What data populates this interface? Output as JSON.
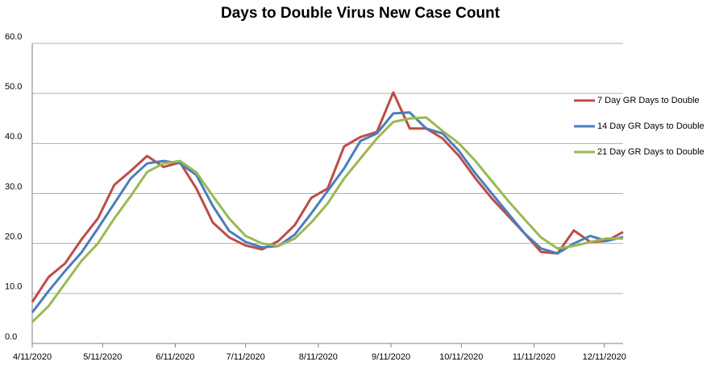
{
  "chart_data": {
    "type": "line",
    "title": "Days to Double Virus New Case Count",
    "x": [
      "2020-04-11",
      "2020-04-18",
      "2020-04-25",
      "2020-05-02",
      "2020-05-09",
      "2020-05-16",
      "2020-05-23",
      "2020-05-30",
      "2020-06-06",
      "2020-06-13",
      "2020-06-20",
      "2020-06-27",
      "2020-07-04",
      "2020-07-11",
      "2020-07-18",
      "2020-07-25",
      "2020-08-01",
      "2020-08-08",
      "2020-08-15",
      "2020-08-22",
      "2020-08-29",
      "2020-09-05",
      "2020-09-12",
      "2020-09-19",
      "2020-09-26",
      "2020-10-03",
      "2020-10-10",
      "2020-10-17",
      "2020-10-24",
      "2020-10-31",
      "2020-11-07",
      "2020-11-14",
      "2020-11-21",
      "2020-11-28",
      "2020-12-05",
      "2020-12-12",
      "2020-12-19"
    ],
    "series": [
      {
        "name": "7 Day GR Days to Double",
        "color": "#be4b48",
        "values": [
          8.3,
          13.3,
          16,
          20.8,
          25,
          31.7,
          34.5,
          37.5,
          35.3,
          36.2,
          31,
          24.2,
          21.2,
          19.6,
          18.8,
          20.5,
          23.7,
          29.1,
          31,
          39.4,
          41.3,
          42.3,
          50.2,
          43,
          43,
          41,
          37.5,
          33,
          29,
          25.5,
          22,
          18.3,
          18,
          22.6,
          20.3,
          20.5,
          22.3
        ]
      },
      {
        "name": "14 Day GR Days to Double",
        "color": "#4a7ebb",
        "values": [
          6.2,
          10.5,
          14.5,
          18.2,
          23,
          28,
          33,
          36,
          36.5,
          36,
          33.7,
          27.5,
          22.5,
          20.3,
          19.2,
          19.5,
          21.8,
          26,
          30.5,
          35,
          40.5,
          42,
          46,
          46.2,
          43,
          42,
          38.5,
          34,
          30,
          26,
          22,
          19,
          18,
          20,
          21.5,
          20.5,
          21.3
        ]
      },
      {
        "name": "21 Day GR Days to Double",
        "color": "#98b954",
        "values": [
          4.3,
          7.5,
          12,
          16.5,
          20,
          25,
          29.5,
          34.3,
          36,
          36.5,
          34.2,
          29.5,
          25,
          21.5,
          20,
          19.5,
          21,
          24.2,
          28,
          33,
          37,
          41,
          44.3,
          45,
          45.2,
          42.5,
          40,
          36.5,
          32.5,
          28.5,
          24.8,
          21.2,
          19,
          19.5,
          20.3,
          21,
          21
        ]
      }
    ],
    "xlim": [
      "2020-04-11",
      "2020-12-19"
    ],
    "xticks": [
      {
        "value": "2020-04-11",
        "label": "4/11/2020"
      },
      {
        "value": "2020-05-11",
        "label": "5/11/2020"
      },
      {
        "value": "2020-06-11",
        "label": "6/11/2020"
      },
      {
        "value": "2020-07-11",
        "label": "7/11/2020"
      },
      {
        "value": "2020-08-11",
        "label": "8/11/2020"
      },
      {
        "value": "2020-09-11",
        "label": "9/11/2020"
      },
      {
        "value": "2020-10-11",
        "label": "10/11/2020"
      },
      {
        "value": "2020-11-11",
        "label": "11/11/2020"
      },
      {
        "value": "2020-12-11",
        "label": "12/11/2020"
      }
    ],
    "ylim": [
      0,
      60
    ],
    "yticks": [
      {
        "value": 0,
        "label": "0.0"
      },
      {
        "value": 10,
        "label": "10.0"
      },
      {
        "value": 20,
        "label": "20.0"
      },
      {
        "value": 30,
        "label": "30.0"
      },
      {
        "value": 40,
        "label": "40.0"
      },
      {
        "value": 50,
        "label": "50.0"
      },
      {
        "value": 60,
        "label": "60.0"
      }
    ],
    "grid": true,
    "legend": "right"
  }
}
